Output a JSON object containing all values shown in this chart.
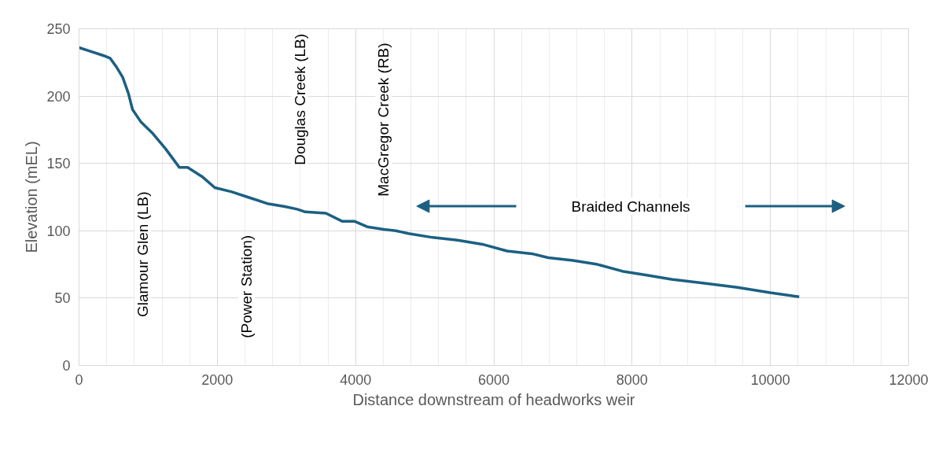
{
  "chart_data": {
    "type": "line",
    "xlabel": "Distance downstream of headworks weir",
    "ylabel": "Elevation (mEL)",
    "xlim": [
      0,
      12000
    ],
    "xticks": [
      0,
      2000,
      4000,
      6000,
      8000,
      10000,
      12000
    ],
    "ylim": [
      0,
      250
    ],
    "yticks": [
      0,
      50,
      100,
      150,
      200,
      250
    ],
    "grid": true,
    "marker": "none",
    "line_style": "solid",
    "series": [
      {
        "color": "#1b6082",
        "x": [
          0,
          179,
          357,
          452,
          536,
          631,
          714,
          774,
          893,
          1071,
          1250,
          1452,
          1571,
          1786,
          1964,
          2202,
          2440,
          2738,
          2976,
          3155,
          3274,
          3571,
          3810,
          3988,
          4167,
          4405,
          4583,
          4762,
          5119,
          5476,
          5833,
          6190,
          6548,
          6786,
          7143,
          7500,
          7857,
          8214,
          8571,
          9048,
          9524,
          10000,
          10417
        ],
        "values": [
          236,
          233,
          230,
          228,
          222,
          214,
          202,
          190,
          181,
          172,
          161,
          147,
          147,
          140,
          132,
          129,
          125,
          120,
          118,
          116,
          114,
          113,
          107,
          107,
          103,
          101,
          100,
          98,
          95,
          93,
          90,
          85,
          83,
          80,
          78,
          75,
          70,
          67,
          64,
          61,
          58,
          54,
          51
        ]
      }
    ],
    "annotations": [
      "Glamour Glen (LB)",
      "(Power Station)",
      "Douglas Creek (LB)",
      "MacGregor Creek (RB)",
      "Braided Channels"
    ]
  }
}
